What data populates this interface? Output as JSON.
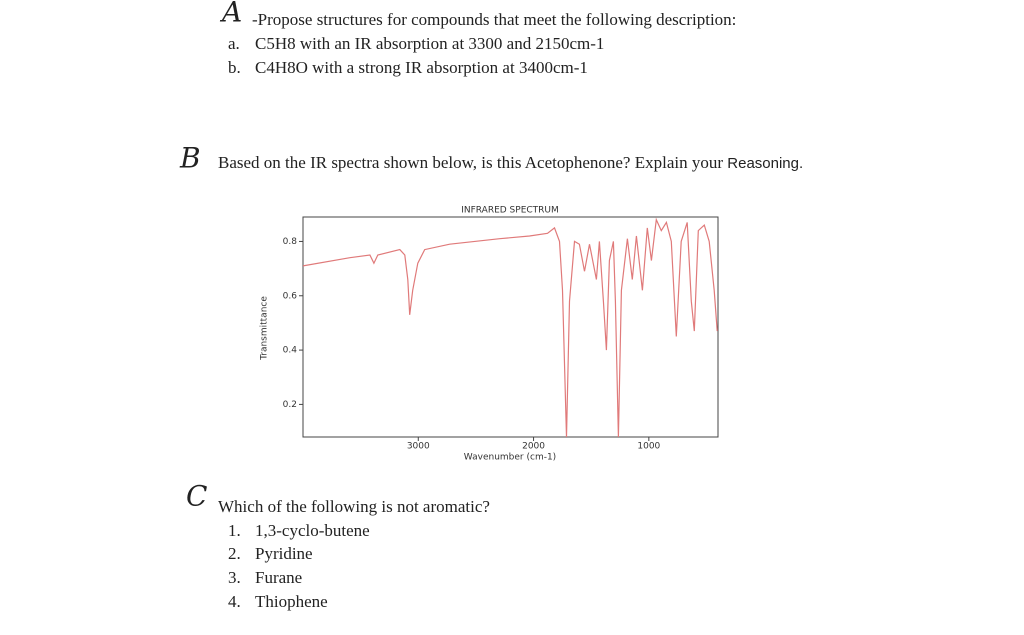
{
  "part_a": {
    "marker": "A",
    "prompt": "-Propose structures for compounds that meet the following description:",
    "items": [
      {
        "label": "a.",
        "text": "C5H8 with an IR absorption at 3300 and 2150cm-1"
      },
      {
        "label": "b.",
        "text": "C4H8O with a strong IR absorption at 3400cm-1"
      }
    ]
  },
  "part_b": {
    "marker": "B",
    "prompt": "Based on the IR spectra shown below, is this Acetophenone? Explain your",
    "prompt_end": "Reasoning."
  },
  "chart_data": {
    "type": "line",
    "title": "INFRARED SPECTRUM",
    "x_label": "Wavenumber (cm-1)",
    "y_label": "Transmittance",
    "color": "#e07a7a",
    "x": [
      4000,
      3593,
      3420,
      3385,
      3351,
      3160,
      3117,
      3091,
      3074,
      3048,
      3004,
      2944,
      2727,
      2294,
      2035,
      1879,
      1818,
      1775,
      1749,
      1714,
      1688,
      1645,
      1602,
      1558,
      1515,
      1455,
      1429,
      1394,
      1368,
      1342,
      1307,
      1290,
      1264,
      1238,
      1186,
      1143,
      1108,
      1056,
      1013,
      978,
      935,
      892,
      848,
      805,
      762,
      719,
      667,
      632,
      606,
      571,
      519,
      476,
      433,
      407
    ],
    "values": [
      0.71,
      0.74,
      0.75,
      0.72,
      0.75,
      0.77,
      0.75,
      0.66,
      0.53,
      0.62,
      0.72,
      0.77,
      0.79,
      0.81,
      0.82,
      0.83,
      0.85,
      0.8,
      0.62,
      0.08,
      0.58,
      0.8,
      0.79,
      0.69,
      0.79,
      0.66,
      0.8,
      0.58,
      0.4,
      0.73,
      0.8,
      0.58,
      0.08,
      0.62,
      0.81,
      0.66,
      0.82,
      0.62,
      0.85,
      0.73,
      0.88,
      0.84,
      0.87,
      0.8,
      0.45,
      0.8,
      0.87,
      0.58,
      0.47,
      0.84,
      0.86,
      0.8,
      0.62,
      0.47
    ],
    "xlim": [
      4000,
      400
    ],
    "ylim": [
      0.08,
      0.89
    ],
    "xticks": [
      3000,
      2000,
      1000
    ],
    "yticks": [
      0.2,
      0.4,
      0.6,
      0.8
    ]
  },
  "part_c": {
    "marker": "C",
    "prompt": "Which of the following is not aromatic?",
    "items": [
      {
        "label": "1.",
        "text": "1,3-cyclo-butene"
      },
      {
        "label": "2.",
        "text": "Pyridine"
      },
      {
        "label": "3.",
        "text": "Furane"
      },
      {
        "label": "4.",
        "text": "Thiophene"
      }
    ]
  }
}
